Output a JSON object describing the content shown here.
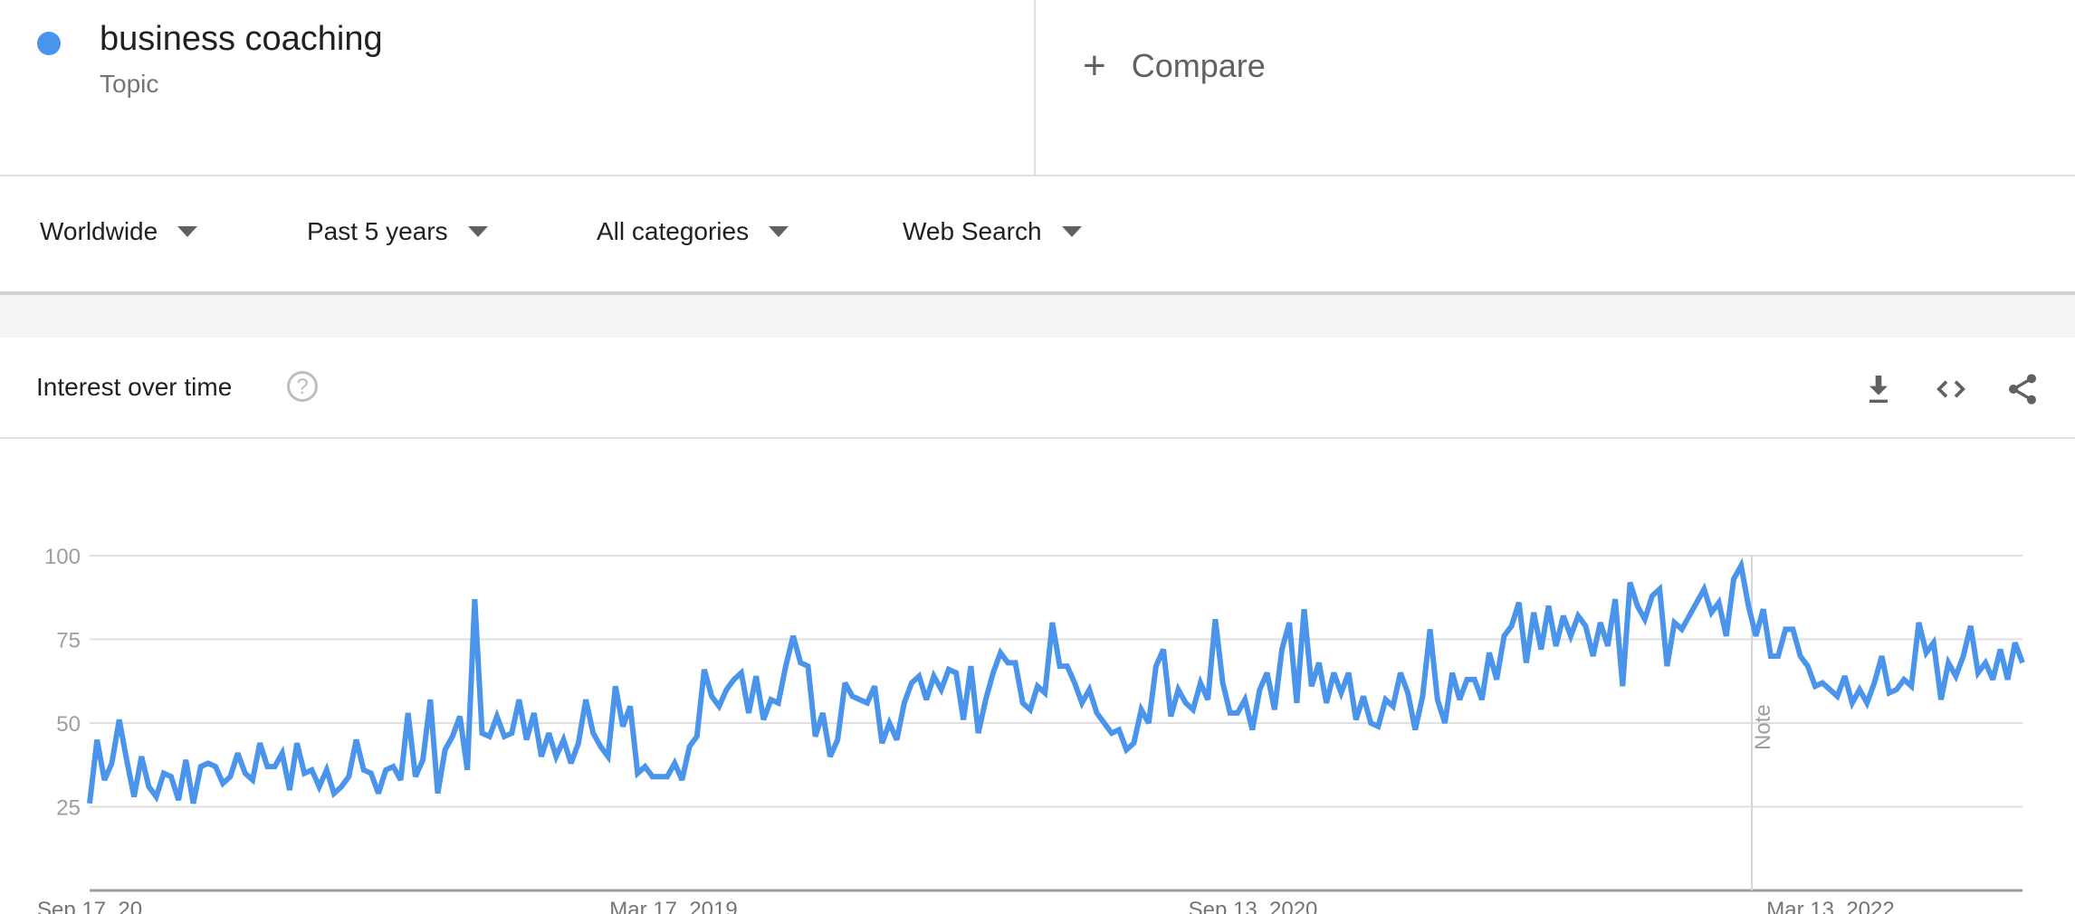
{
  "header": {
    "term": "business coaching",
    "term_type": "Topic",
    "term_color": "#4a94eb",
    "compare_label": "Compare",
    "compare_icon": "plus-icon"
  },
  "filters": [
    {
      "label": "Worldwide"
    },
    {
      "label": "Past 5 years"
    },
    {
      "label": "All categories"
    },
    {
      "label": "Web Search"
    }
  ],
  "card": {
    "title": "Interest over time",
    "help_icon": "help-circle-icon",
    "help_glyph": "?",
    "tools": [
      "download-icon",
      "embed-code-icon",
      "share-icon"
    ]
  },
  "chart_data": {
    "type": "line",
    "series": [
      {
        "name": "business coaching",
        "color": "#4a94eb",
        "values": [
          26,
          45,
          33,
          38,
          51,
          39,
          28,
          40,
          31,
          28,
          35,
          34,
          27,
          39,
          26,
          37,
          38,
          37,
          32,
          34,
          41,
          35,
          33,
          44,
          37,
          37,
          41,
          30,
          44,
          35,
          36,
          31,
          36,
          29,
          31,
          34,
          45,
          36,
          35,
          29,
          36,
          37,
          33,
          53,
          34,
          39,
          57,
          29,
          42,
          46,
          52,
          36,
          87,
          47,
          46,
          52,
          46,
          47,
          57,
          45,
          53,
          40,
          47,
          40,
          45,
          38,
          44,
          57,
          47,
          43,
          40,
          61,
          49,
          55,
          35,
          37,
          34,
          34,
          34,
          38,
          33,
          43,
          46,
          66,
          58,
          55,
          60,
          63,
          65,
          53,
          64,
          51,
          57,
          56,
          67,
          76,
          68,
          67,
          46,
          53,
          40,
          45,
          62,
          58,
          57,
          56,
          61,
          44,
          50,
          45,
          56,
          62,
          64,
          57,
          64,
          60,
          66,
          65,
          51,
          67,
          47,
          57,
          65,
          71,
          68,
          68,
          56,
          54,
          61,
          59,
          80,
          67,
          67,
          62,
          56,
          60,
          53,
          50,
          47,
          48,
          42,
          44,
          54,
          50,
          67,
          72,
          52,
          60,
          56,
          54,
          62,
          57,
          81,
          62,
          53,
          53,
          57,
          48,
          60,
          65,
          54,
          72,
          80,
          56,
          84,
          61,
          68,
          56,
          65,
          59,
          65,
          51,
          58,
          50,
          49,
          57,
          55,
          65,
          59,
          48,
          58,
          78,
          57,
          50,
          65,
          57,
          63,
          63,
          57,
          71,
          63,
          76,
          79,
          86,
          68,
          83,
          72,
          85,
          73,
          82,
          76,
          82,
          79,
          70,
          80,
          73,
          87,
          61,
          92,
          85,
          81,
          88,
          90,
          67,
          80,
          78,
          82,
          86,
          90,
          83,
          86,
          76,
          93,
          97,
          85,
          76,
          84,
          70,
          70,
          78,
          78,
          70,
          67,
          61,
          62,
          60,
          58,
          64,
          56,
          60,
          56,
          62,
          70,
          59,
          60,
          63,
          61,
          80,
          71,
          74,
          57,
          68,
          64,
          70,
          79,
          65,
          68,
          63,
          72,
          63,
          74,
          68
        ]
      }
    ],
    "y_ticks": [
      "25",
      "50",
      "75",
      "100"
    ],
    "ylim": [
      0,
      100
    ],
    "x_tick_labels": [
      "Sep 17, 20...",
      "Mar 17, 2019",
      "Sep 13, 2020",
      "Mar 13, 2022"
    ],
    "annotation": "Note",
    "grid": true,
    "legend": "none"
  }
}
